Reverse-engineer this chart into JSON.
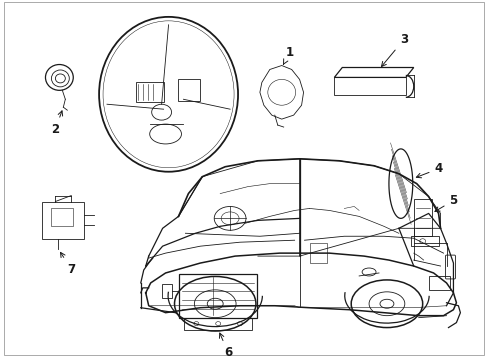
{
  "bg_color": "#ffffff",
  "line_color": "#1a1a1a",
  "lw": 0.9,
  "tlw": 0.6,
  "fig_width": 4.89,
  "fig_height": 3.6,
  "dpi": 100,
  "label_fontsize": 8.5
}
